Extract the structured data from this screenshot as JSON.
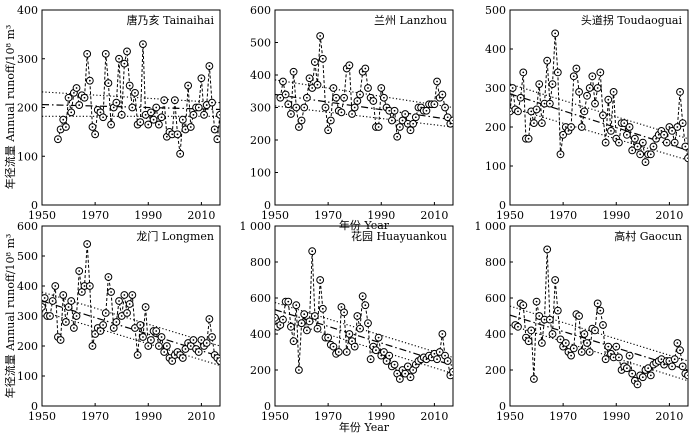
{
  "figure": {
    "ylabel_top": "年径流量 Annual runoff/10⁸ m³",
    "ylabel_bottom": "年径流量 Annual runoff/10⁸ m³",
    "xlabel_top": "年份 Year",
    "xlabel_bottom": "年份 Year"
  },
  "chart_data": [
    {
      "type": "line",
      "title": "唐乃亥 Tainaihai",
      "xlim": [
        1950,
        2017
      ],
      "ylim": [
        0,
        400
      ],
      "xticks": [
        1950,
        1970,
        1990,
        2010
      ],
      "yticks": [
        0,
        100,
        200,
        300,
        400
      ],
      "ytick_labels": [
        "0",
        "100",
        "200",
        "300",
        "400"
      ],
      "x": [
        1956,
        1957,
        1958,
        1959,
        1960,
        1961,
        1962,
        1963,
        1964,
        1965,
        1966,
        1967,
        1968,
        1969,
        1970,
        1971,
        1972,
        1973,
        1974,
        1975,
        1976,
        1977,
        1978,
        1979,
        1980,
        1981,
        1982,
        1983,
        1984,
        1985,
        1986,
        1987,
        1988,
        1989,
        1990,
        1991,
        1992,
        1993,
        1994,
        1995,
        1996,
        1997,
        1998,
        1999,
        2000,
        2001,
        2002,
        2003,
        2004,
        2005,
        2006,
        2007,
        2008,
        2009,
        2010,
        2011,
        2012,
        2013,
        2014,
        2015,
        2016,
        2017
      ],
      "y": [
        135,
        155,
        175,
        160,
        220,
        190,
        230,
        240,
        205,
        225,
        220,
        310,
        255,
        160,
        145,
        195,
        190,
        180,
        310,
        250,
        165,
        200,
        210,
        300,
        185,
        290,
        315,
        245,
        200,
        230,
        165,
        170,
        330,
        185,
        165,
        190,
        175,
        200,
        165,
        180,
        215,
        140,
        150,
        145,
        215,
        145,
        105,
        175,
        155,
        245,
        160,
        185,
        200,
        200,
        260,
        185,
        205,
        285,
        210,
        155,
        135,
        185
      ],
      "trend": {
        "start": 206,
        "end": 196
      },
      "band": {
        "upper_start": 232,
        "upper_end": 210,
        "lower_start": 182,
        "lower_end": 182
      }
    },
    {
      "type": "line",
      "title": "兰州 Lanzhou",
      "xlim": [
        1950,
        2017
      ],
      "ylim": [
        0,
        600
      ],
      "xticks": [
        1950,
        1970,
        1990,
        2010
      ],
      "yticks": [
        0,
        100,
        200,
        300,
        400,
        500,
        600
      ],
      "ytick_labels": [
        "0",
        "100",
        "200",
        "300",
        "400",
        "500",
        "600"
      ],
      "x": [
        1952,
        1953,
        1954,
        1955,
        1956,
        1957,
        1958,
        1959,
        1960,
        1961,
        1962,
        1963,
        1964,
        1965,
        1966,
        1967,
        1968,
        1969,
        1970,
        1971,
        1972,
        1973,
        1974,
        1975,
        1976,
        1977,
        1978,
        1979,
        1980,
        1981,
        1982,
        1983,
        1984,
        1985,
        1986,
        1987,
        1988,
        1989,
        1990,
        1991,
        1992,
        1993,
        1994,
        1995,
        1996,
        1997,
        1998,
        1999,
        2000,
        2001,
        2002,
        2003,
        2004,
        2005,
        2006,
        2007,
        2008,
        2009,
        2010,
        2011,
        2012,
        2013,
        2014,
        2015,
        2016,
        2017
      ],
      "y": [
        330,
        380,
        340,
        310,
        280,
        410,
        300,
        240,
        260,
        300,
        330,
        390,
        360,
        440,
        370,
        520,
        450,
        300,
        230,
        260,
        360,
        330,
        290,
        285,
        330,
        420,
        430,
        280,
        300,
        320,
        340,
        410,
        420,
        360,
        330,
        320,
        240,
        240,
        360,
        330,
        300,
        290,
        260,
        290,
        210,
        240,
        260,
        280,
        250,
        230,
        250,
        270,
        300,
        300,
        290,
        290,
        310,
        310,
        310,
        380,
        330,
        340,
        300,
        270,
        250,
        260
      ],
      "trend": {
        "start": 340,
        "end": 262
      },
      "band": {
        "upper_start": 385,
        "upper_end": 300,
        "lower_start": 305,
        "lower_end": 240
      }
    },
    {
      "type": "line",
      "title": "头道拐 Toudaoguai",
      "xlim": [
        1950,
        2017
      ],
      "ylim": [
        0,
        500
      ],
      "xticks": [
        1950,
        1970,
        1990,
        2010
      ],
      "yticks": [
        0,
        100,
        200,
        300,
        400,
        500
      ],
      "ytick_labels": [
        "0",
        "100",
        "200",
        "300",
        "400",
        "500"
      ],
      "x": [
        1950,
        1951,
        1952,
        1953,
        1954,
        1955,
        1956,
        1957,
        1958,
        1959,
        1960,
        1961,
        1962,
        1963,
        1964,
        1965,
        1966,
        1967,
        1968,
        1969,
        1970,
        1971,
        1972,
        1973,
        1974,
        1975,
        1976,
        1977,
        1978,
        1979,
        1980,
        1981,
        1982,
        1983,
        1984,
        1985,
        1986,
        1987,
        1988,
        1989,
        1990,
        1991,
        1992,
        1993,
        1994,
        1995,
        1996,
        1997,
        1998,
        1999,
        2000,
        2001,
        2002,
        2003,
        2004,
        2005,
        2006,
        2007,
        2008,
        2009,
        2010,
        2011,
        2012,
        2013,
        2014,
        2015,
        2016,
        2017
      ],
      "y": [
        240,
        300,
        245,
        240,
        275,
        340,
        170,
        170,
        240,
        210,
        245,
        310,
        210,
        260,
        370,
        260,
        310,
        440,
        340,
        130,
        180,
        200,
        190,
        200,
        330,
        350,
        290,
        200,
        240,
        280,
        300,
        330,
        260,
        300,
        340,
        230,
        160,
        270,
        190,
        290,
        170,
        160,
        210,
        210,
        180,
        200,
        140,
        170,
        150,
        130,
        160,
        110,
        130,
        130,
        150,
        170,
        180,
        190,
        180,
        160,
        200,
        190,
        160,
        200,
        290,
        210,
        150,
        120
      ],
      "trend": {
        "start": 285,
        "end": 140
      },
      "band": {
        "upper_start": 310,
        "upper_end": 170,
        "lower_start": 250,
        "lower_end": 115
      }
    },
    {
      "type": "line",
      "title": "龙门 Longmen",
      "xlim": [
        1950,
        2017
      ],
      "ylim": [
        0,
        600
      ],
      "xticks": [
        1950,
        1970,
        1990,
        2010
      ],
      "yticks": [
        0,
        100,
        200,
        300,
        400,
        500,
        600
      ],
      "ytick_labels": [
        "0",
        "100",
        "200",
        "300",
        "400",
        "500",
        "600"
      ],
      "x": [
        1950,
        1951,
        1952,
        1953,
        1954,
        1955,
        1956,
        1957,
        1958,
        1959,
        1960,
        1961,
        1962,
        1963,
        1964,
        1965,
        1966,
        1967,
        1968,
        1969,
        1970,
        1971,
        1972,
        1973,
        1974,
        1975,
        1976,
        1977,
        1978,
        1979,
        1980,
        1981,
        1982,
        1983,
        1984,
        1985,
        1986,
        1987,
        1988,
        1989,
        1990,
        1991,
        1992,
        1993,
        1994,
        1995,
        1996,
        1997,
        1998,
        1999,
        2000,
        2001,
        2002,
        2003,
        2004,
        2005,
        2006,
        2007,
        2008,
        2009,
        2010,
        2011,
        2012,
        2013,
        2014,
        2015,
        2016,
        2017
      ],
      "y": [
        330,
        360,
        300,
        300,
        350,
        400,
        230,
        220,
        370,
        280,
        330,
        350,
        260,
        300,
        450,
        380,
        400,
        540,
        400,
        200,
        240,
        260,
        250,
        270,
        310,
        430,
        380,
        260,
        280,
        350,
        300,
        370,
        310,
        340,
        370,
        260,
        170,
        270,
        230,
        330,
        200,
        220,
        250,
        250,
        200,
        230,
        180,
        200,
        160,
        150,
        170,
        180,
        170,
        160,
        190,
        210,
        200,
        220,
        190,
        180,
        220,
        200,
        210,
        290,
        230,
        170,
        160,
        150
      ],
      "trend": {
        "start": 350,
        "end": 165
      },
      "band": {
        "upper_start": 380,
        "upper_end": 200,
        "lower_start": 315,
        "lower_end": 135
      }
    },
    {
      "type": "line",
      "title": "花园 Huayuankou",
      "xlim": [
        1950,
        2017
      ],
      "ylim": [
        0,
        1000
      ],
      "xticks": [
        1950,
        1970,
        1990,
        2010
      ],
      "yticks": [
        0,
        200,
        400,
        600,
        800,
        1000
      ],
      "ytick_labels": [
        "0",
        "200",
        "400",
        "600",
        "800",
        "1 000"
      ],
      "x": [
        1950,
        1951,
        1952,
        1953,
        1954,
        1955,
        1956,
        1957,
        1958,
        1959,
        1960,
        1961,
        1962,
        1963,
        1964,
        1965,
        1966,
        1967,
        1968,
        1969,
        1970,
        1971,
        1972,
        1973,
        1974,
        1975,
        1976,
        1977,
        1978,
        1979,
        1980,
        1981,
        1982,
        1983,
        1984,
        1985,
        1986,
        1987,
        1988,
        1989,
        1990,
        1991,
        1992,
        1993,
        1994,
        1995,
        1996,
        1997,
        1998,
        1999,
        2000,
        2001,
        2002,
        2003,
        2004,
        2005,
        2006,
        2007,
        2008,
        2009,
        2010,
        2011,
        2012,
        2013,
        2014,
        2015,
        2016,
        2017
      ],
      "y": [
        490,
        440,
        450,
        480,
        580,
        580,
        440,
        360,
        560,
        200,
        460,
        510,
        420,
        470,
        860,
        500,
        430,
        700,
        540,
        380,
        380,
        340,
        330,
        290,
        300,
        550,
        520,
        300,
        400,
        360,
        330,
        500,
        430,
        610,
        560,
        460,
        260,
        330,
        310,
        380,
        280,
        300,
        250,
        280,
        220,
        230,
        180,
        150,
        200,
        180,
        220,
        160,
        200,
        230,
        250,
        260,
        270,
        260,
        280,
        270,
        290,
        260,
        300,
        400,
        280,
        250,
        170,
        190
      ],
      "trend": {
        "start": 535,
        "end": 225
      },
      "band": {
        "upper_start": 575,
        "upper_end": 270,
        "lower_start": 490,
        "lower_end": 180
      }
    },
    {
      "type": "line",
      "title": "高村 Gaocun",
      "xlim": [
        1950,
        2017
      ],
      "ylim": [
        0,
        1000
      ],
      "xticks": [
        1950,
        1970,
        1990,
        2010
      ],
      "yticks": [
        0,
        200,
        400,
        600,
        800,
        1000
      ],
      "ytick_labels": [
        "0",
        "200",
        "400",
        "600",
        "800",
        "1 000"
      ],
      "x": [
        1952,
        1953,
        1954,
        1955,
        1956,
        1957,
        1958,
        1959,
        1960,
        1961,
        1962,
        1963,
        1964,
        1965,
        1966,
        1967,
        1968,
        1969,
        1970,
        1971,
        1972,
        1973,
        1974,
        1975,
        1976,
        1977,
        1978,
        1979,
        1980,
        1981,
        1982,
        1983,
        1984,
        1985,
        1986,
        1987,
        1988,
        1989,
        1990,
        1991,
        1992,
        1993,
        1994,
        1995,
        1996,
        1997,
        1998,
        1999,
        2000,
        2001,
        2002,
        2003,
        2004,
        2005,
        2006,
        2007,
        2008,
        2009,
        2010,
        2011,
        2012,
        2013,
        2014,
        2015,
        2016,
        2017
      ],
      "y": [
        450,
        440,
        570,
        560,
        380,
        360,
        420,
        150,
        580,
        500,
        350,
        480,
        870,
        480,
        400,
        700,
        530,
        370,
        330,
        350,
        300,
        280,
        320,
        510,
        500,
        300,
        400,
        350,
        300,
        430,
        420,
        570,
        530,
        450,
        260,
        330,
        290,
        270,
        330,
        270,
        200,
        220,
        210,
        280,
        180,
        140,
        120,
        170,
        160,
        200,
        210,
        170,
        230,
        240,
        250,
        260,
        230,
        250,
        250,
        220,
        260,
        350,
        310,
        220,
        180,
        170
      ],
      "trend": {
        "start": 505,
        "end": 200
      },
      "band": {
        "upper_start": 555,
        "upper_end": 250,
        "lower_start": 450,
        "lower_end": 140
      }
    }
  ]
}
